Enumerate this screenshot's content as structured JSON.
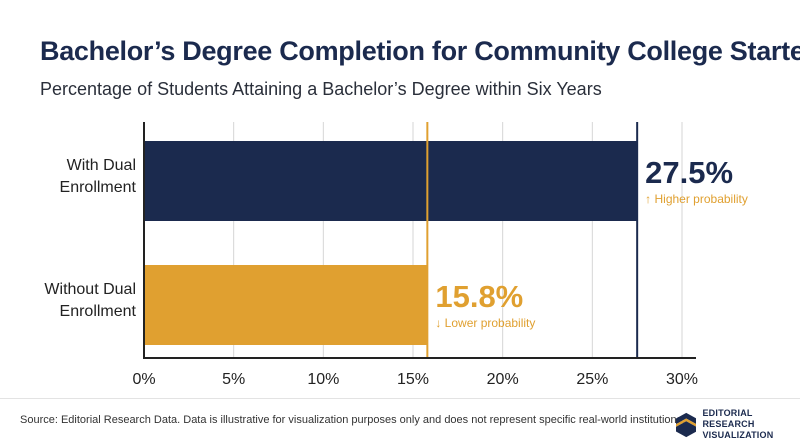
{
  "header": {
    "title": "Bachelor’s Degree Completion for Community College Starters",
    "subtitle": "Percentage of Students Attaining a Bachelor’s Degree within Six Years"
  },
  "chart_data": {
    "type": "bar",
    "orientation": "horizontal",
    "categories": [
      [
        "With Dual",
        "Enrollment"
      ],
      [
        "Without Dual",
        "Enrollment"
      ]
    ],
    "values": [
      27.5,
      15.8
    ],
    "value_labels": [
      "27.5%",
      "15.8%"
    ],
    "annotations": [
      "↑ Higher probability",
      "↓ Lower probability"
    ],
    "xlim": [
      0,
      30
    ],
    "xticks": [
      0,
      5,
      10,
      15,
      20,
      25,
      30
    ],
    "xtick_labels": [
      "0%",
      "5%",
      "10%",
      "15%",
      "20%",
      "25%",
      "30%"
    ],
    "grid": true,
    "colors": [
      "#1b2a4e",
      "#e0a030"
    ]
  },
  "footer": {
    "source": "Source: Editorial Research Data. Data is illustrative for visualization purposes only and does not represent specific real-world institutions.",
    "brand_line1": "EDITORIAL RESEARCH",
    "brand_line2": "VISUALIZATION",
    "logo_icon": "er-monogram-icon"
  }
}
